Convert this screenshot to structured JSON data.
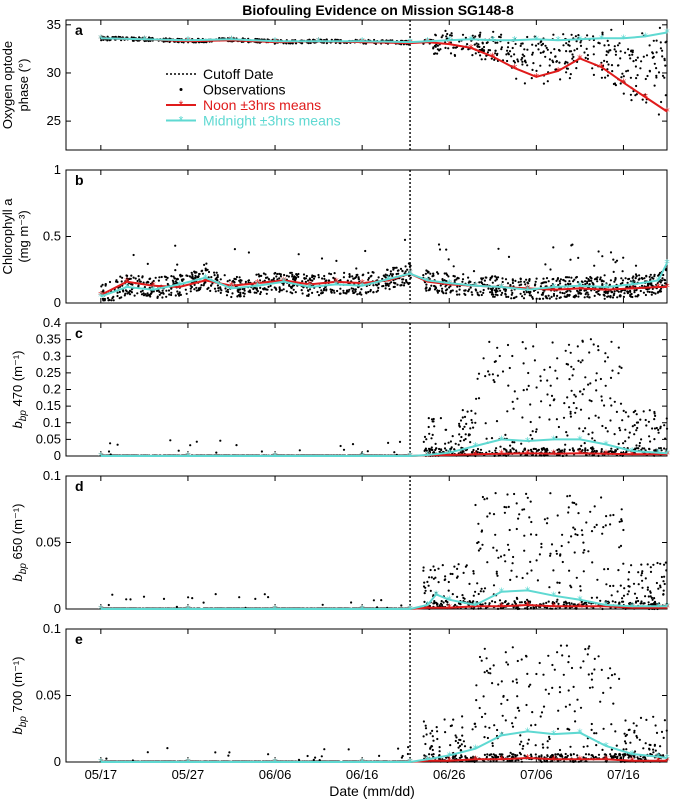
{
  "figure": {
    "title": "Biofouling Evidence on Mission SG148-8",
    "xlabel": "Date (mm/dd)",
    "x_ticks": [
      "05/17",
      "05/27",
      "06/06",
      "06/16",
      "06/26",
      "07/06",
      "07/16"
    ],
    "colors": {
      "noon": "#e01b1b",
      "midnight": "#5fd9d2",
      "obs": "#000000"
    }
  },
  "legend": {
    "items": [
      {
        "label": "Cutoff Date",
        "style": "dotted"
      },
      {
        "label": "Observations",
        "style": "dot"
      },
      {
        "label": "Noon ±3hrs means",
        "style": "noon"
      },
      {
        "label": "Midnight ±3hrs means",
        "style": "midnight"
      }
    ]
  },
  "chart_data": [
    {
      "panel": "a",
      "type": "scatter",
      "ylabel_line1": "Oxygen optode",
      "ylabel_line2": "phase (°)",
      "ylim": [
        22,
        35.5
      ],
      "y_ticks": [
        25,
        30,
        35
      ],
      "cutoff_day": 35.5,
      "series": [
        {
          "name": "Noon ±3hrs means",
          "x": [
            0,
            5,
            10,
            15,
            20,
            25,
            30,
            35.5,
            37.5,
            40,
            42.5,
            45,
            47.5,
            50,
            52.5,
            55,
            57.5,
            60,
            62.5,
            65
          ],
          "y": [
            33.6,
            33.5,
            33.3,
            33.4,
            33.2,
            33.3,
            33.2,
            33.1,
            33.2,
            33.0,
            32.6,
            31.7,
            30.5,
            29.6,
            30.2,
            31.5,
            30.6,
            29.0,
            27.5,
            26.0
          ]
        },
        {
          "name": "Midnight ±3hrs means",
          "x": [
            0,
            5,
            10,
            15,
            20,
            25,
            30,
            35.5,
            37.5,
            40,
            42.5,
            45,
            47.5,
            50,
            52.5,
            55,
            57.5,
            60,
            62.5,
            65
          ],
          "y": [
            33.6,
            33.5,
            33.4,
            33.5,
            33.3,
            33.3,
            33.3,
            33.2,
            33.3,
            33.4,
            33.5,
            33.4,
            33.4,
            33.5,
            33.4,
            33.5,
            33.6,
            33.6,
            33.8,
            34.2
          ]
        }
      ]
    },
    {
      "panel": "b",
      "type": "scatter",
      "ylabel_line1": "Chlorophyll a",
      "ylabel_line2": "(mg m⁻³)",
      "ylim": [
        0,
        1
      ],
      "y_ticks": [
        0,
        0.5,
        1
      ],
      "cutoff_day": 35.5,
      "series": [
        {
          "name": "Noon ±3hrs means",
          "x": [
            0,
            3,
            6,
            9,
            12,
            15,
            18,
            21,
            24,
            27,
            30,
            33,
            35.5,
            37.5,
            40,
            43,
            46,
            49,
            52,
            55,
            58,
            61,
            64,
            65
          ],
          "y": [
            0.06,
            0.16,
            0.13,
            0.12,
            0.17,
            0.13,
            0.15,
            0.17,
            0.14,
            0.16,
            0.15,
            0.17,
            0.22,
            0.16,
            0.14,
            0.13,
            0.12,
            0.11,
            0.1,
            0.11,
            0.1,
            0.11,
            0.12,
            0.12
          ]
        },
        {
          "name": "Midnight ±3hrs means",
          "x": [
            0,
            3,
            6,
            9,
            12,
            15,
            18,
            21,
            24,
            27,
            30,
            33,
            35.5,
            37.5,
            40,
            43,
            46,
            49,
            52,
            55,
            58,
            61,
            64,
            65
          ],
          "y": [
            0.05,
            0.12,
            0.1,
            0.14,
            0.19,
            0.11,
            0.13,
            0.16,
            0.12,
            0.14,
            0.13,
            0.18,
            0.22,
            0.17,
            0.15,
            0.13,
            0.12,
            0.1,
            0.12,
            0.13,
            0.12,
            0.14,
            0.17,
            0.3
          ]
        }
      ]
    },
    {
      "panel": "c",
      "type": "scatter",
      "ylabel_line1": "b",
      "ylabel_sub": "bp",
      "ylabel_rest": " 470 (m⁻¹)",
      "ylim": [
        0,
        0.4
      ],
      "y_ticks": [
        0,
        0.05,
        0.1,
        0.15,
        0.2,
        0.25,
        0.3,
        0.35,
        0.4
      ],
      "cutoff_day": 35.5,
      "series": [
        {
          "name": "Noon ±3hrs means",
          "x": [
            0,
            10,
            20,
            30,
            35.5,
            37.5,
            40,
            43,
            46,
            49,
            52,
            55,
            58,
            61,
            64,
            65
          ],
          "y": [
            0,
            0,
            0,
            0,
            0,
            0.002,
            0.003,
            0.005,
            0.007,
            0.008,
            0.007,
            0.008,
            0.007,
            0.005,
            0.005,
            0.005
          ]
        },
        {
          "name": "Midnight ±3hrs means",
          "x": [
            0,
            10,
            20,
            30,
            35.5,
            37.5,
            40,
            43,
            46,
            49,
            52,
            55,
            58,
            61,
            64,
            65
          ],
          "y": [
            0,
            0,
            0,
            0,
            0,
            0.003,
            0.01,
            0.03,
            0.05,
            0.045,
            0.05,
            0.05,
            0.035,
            0.015,
            0.01,
            0.008
          ]
        }
      ]
    },
    {
      "panel": "d",
      "type": "scatter",
      "ylabel_line1": "b",
      "ylabel_sub": "bp",
      "ylabel_rest": " 650 (m⁻¹)",
      "ylim": [
        0,
        0.1
      ],
      "y_ticks": [
        0,
        0.05,
        0.1
      ],
      "cutoff_day": 35.5,
      "series": [
        {
          "name": "Noon ±3hrs means",
          "x": [
            0,
            10,
            20,
            30,
            35.5,
            37.5,
            40,
            43,
            46,
            49,
            52,
            55,
            58,
            61,
            64,
            65
          ],
          "y": [
            0,
            0,
            0,
            0,
            0,
            0.001,
            0.001,
            0.002,
            0.002,
            0.003,
            0.002,
            0.002,
            0.002,
            0.001,
            0.001,
            0.001
          ]
        },
        {
          "name": "Midnight ±3hrs means",
          "x": [
            0,
            10,
            20,
            30,
            35.5,
            37.5,
            38.5,
            40,
            43,
            46,
            49,
            52,
            55,
            58,
            61,
            64,
            65
          ],
          "y": [
            0,
            0,
            0,
            0,
            0,
            0.003,
            0.011,
            0.007,
            0.003,
            0.013,
            0.014,
            0.01,
            0.007,
            0.003,
            0.002,
            0.002,
            0.002
          ]
        }
      ]
    },
    {
      "panel": "e",
      "type": "scatter",
      "ylabel_line1": "b",
      "ylabel_sub": "bp",
      "ylabel_rest": " 700 (m⁻¹)",
      "ylim": [
        0,
        0.1
      ],
      "y_ticks": [
        0,
        0.05,
        0.1
      ],
      "cutoff_day": 35.5,
      "series": [
        {
          "name": "Noon ±3hrs means",
          "x": [
            0,
            10,
            20,
            30,
            35.5,
            37.5,
            40,
            43,
            46,
            49,
            52,
            55,
            58,
            61,
            64,
            65
          ],
          "y": [
            0,
            0,
            0,
            0,
            0,
            0.001,
            0.001,
            0.002,
            0.002,
            0.003,
            0.002,
            0.002,
            0.002,
            0.001,
            0.001,
            0.001
          ]
        },
        {
          "name": "Midnight ±3hrs means",
          "x": [
            0,
            10,
            20,
            30,
            35.5,
            37.5,
            40,
            43,
            46,
            49,
            52,
            55,
            58,
            61,
            64,
            65
          ],
          "y": [
            0,
            0,
            0,
            0,
            0,
            0.002,
            0.005,
            0.01,
            0.02,
            0.023,
            0.021,
            0.022,
            0.012,
            0.006,
            0.004,
            0.003
          ]
        }
      ]
    }
  ]
}
